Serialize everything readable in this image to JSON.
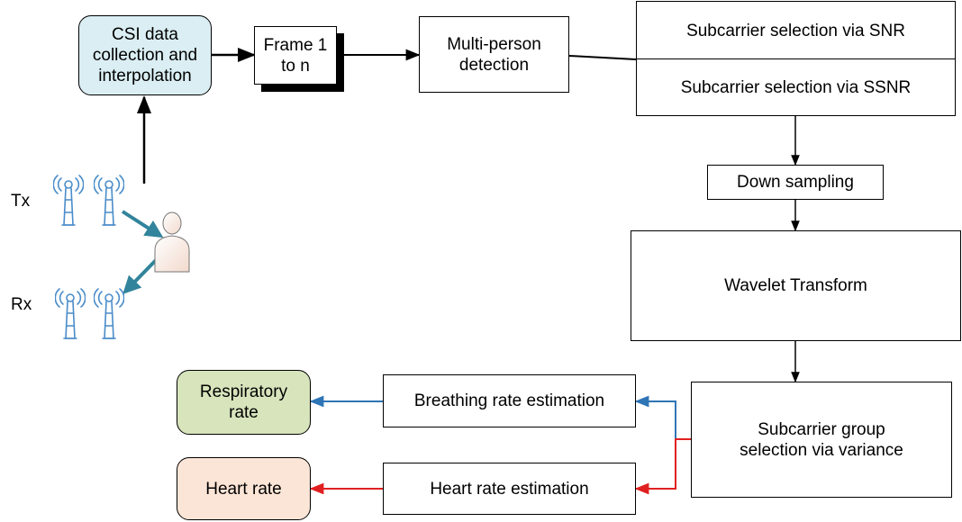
{
  "nodes": {
    "csi": "CSI data\ncollection and\ninterpolation",
    "frames": "Frame 1\nto n",
    "multi": "Multi-person\ndetection",
    "snr": "Subcarrier selection via SNR",
    "ssnr": "Subcarrier selection via SSNR",
    "down": "Down sampling",
    "wavelet": "Wavelet Transform",
    "group": "Subcarrier group\nselection via variance",
    "breath": "Breathing rate estimation",
    "heartest": "Heart rate estimation",
    "resp": "Respiratory\nrate",
    "heart": "Heart rate"
  },
  "labels": {
    "tx": "Tx",
    "rx": "Rx"
  },
  "colors": {
    "csi_fill": "#daeef3",
    "resp_fill": "#d7e4bc",
    "heart_fill": "#fbe5d6",
    "breath_arrow": "#2e75b6",
    "heart_arrow": "#e02020",
    "antenna": "#4a8cc9",
    "signal_arrow": "#31849b"
  },
  "icons": [
    "antenna-icon",
    "person-icon"
  ]
}
